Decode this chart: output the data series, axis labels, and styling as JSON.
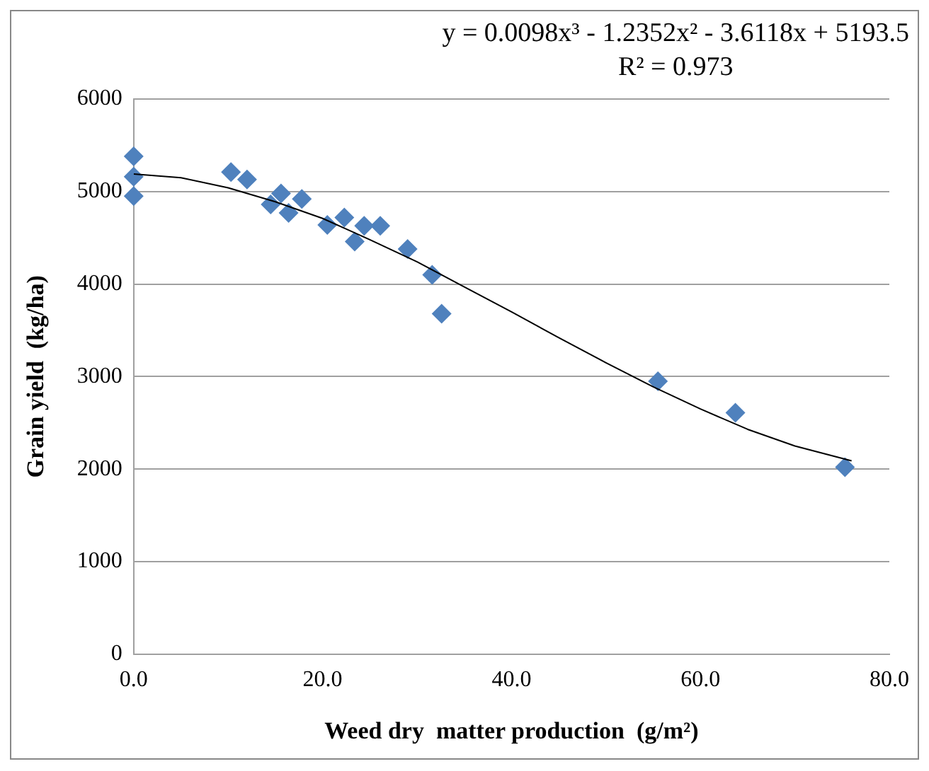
{
  "chart_data": {
    "type": "scatter",
    "xlabel": "Weed dry  matter production  (g/m²)",
    "ylabel": "Grain yield  (kg/ha)",
    "annotations": [
      "y = 0.0098x³ - 1.2352x² - 3.6118x + 5193.5",
      "R² = 0.973"
    ],
    "xlim": [
      0,
      80
    ],
    "xticks": [
      {
        "value": 0,
        "label": "0.0"
      },
      {
        "value": 20,
        "label": "20.0"
      },
      {
        "value": 40,
        "label": "40.0"
      },
      {
        "value": 60,
        "label": "60.0"
      },
      {
        "value": 80,
        "label": "80.0"
      }
    ],
    "ylim": [
      0,
      6000
    ],
    "yticks": [
      0,
      1000,
      2000,
      3000,
      4000,
      5000,
      6000
    ],
    "grid": "y",
    "legend": false,
    "marker": "diamond",
    "series": [
      {
        "type": "scatter",
        "color": "#4f81bd",
        "x": [
          0,
          0,
          0,
          10.3,
          12.0,
          15.6,
          14.5,
          16.4,
          17.8,
          20.5,
          22.3,
          23.4,
          24.4,
          26.1,
          29.0,
          31.6,
          32.6,
          55.5,
          63.7,
          75.3
        ],
        "values": [
          5380,
          5160,
          4950,
          5210,
          5130,
          4980,
          4860,
          4770,
          4920,
          4640,
          4720,
          4460,
          4630,
          4630,
          4380,
          4100,
          3680,
          2950,
          2610,
          2020
        ]
      },
      {
        "type": "line",
        "color": "#000000",
        "marker": "none",
        "x": [
          0,
          5,
          10,
          15,
          20,
          25,
          30,
          35,
          40,
          45,
          50,
          55,
          60,
          65,
          70,
          76
        ],
        "values": [
          5190,
          5150,
          5040,
          4890,
          4710,
          4480,
          4240,
          3970,
          3700,
          3420,
          3150,
          2890,
          2650,
          2430,
          2250,
          2090
        ]
      }
    ]
  }
}
